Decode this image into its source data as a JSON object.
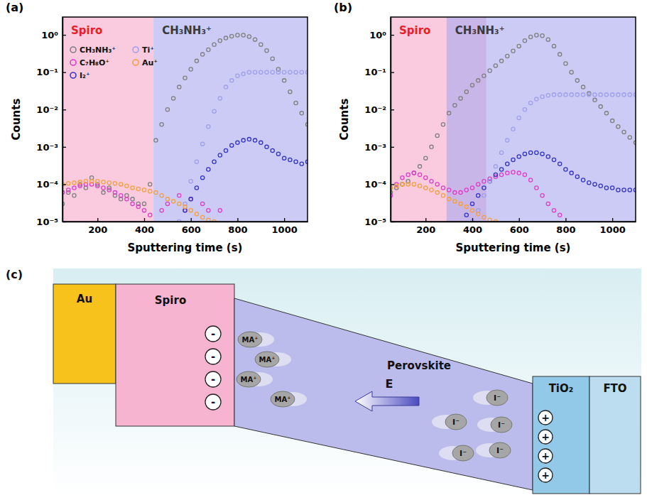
{
  "chart_data": [
    {
      "type": "scatter",
      "title": "(a)",
      "x_label": "Sputtering time (s)",
      "y_label": "Counts",
      "x": [
        50,
        75,
        100,
        125,
        150,
        175,
        200,
        225,
        250,
        275,
        300,
        325,
        350,
        375,
        400,
        425,
        450,
        475,
        500,
        525,
        550,
        575,
        600,
        625,
        650,
        675,
        700,
        725,
        750,
        775,
        800,
        825,
        850,
        875,
        900,
        925,
        950,
        975,
        1000,
        1025,
        1050,
        1075,
        1100
      ],
      "series": [
        {
          "name": "CH₃NH₃⁺",
          "color": "#808080",
          "marker": "circle",
          "values": [
            3e-05,
            6e-05,
            5e-05,
            0.0001,
            8e-05,
            0.00015,
            0.0001,
            6e-05,
            8e-05,
            5e-05,
            4e-05,
            5e-05,
            4e-05,
            3e-05,
            3e-05,
            0.0001,
            0.0015,
            0.004,
            0.01,
            0.02,
            0.04,
            0.07,
            0.12,
            0.2,
            0.3,
            0.4,
            0.55,
            0.7,
            0.82,
            0.92,
            0.98,
            0.98,
            0.9,
            0.75,
            0.55,
            0.38,
            0.23,
            0.12,
            0.06,
            0.03,
            0.015,
            0.008,
            0.004
          ]
        },
        {
          "name": "C₇H₈O⁺",
          "color": "#e040c8",
          "marker": "circle",
          "values": [
            6e-05,
            7e-05,
            8e-05,
            9e-05,
            0.0001,
            0.0001,
            9e-05,
            8e-05,
            7e-05,
            6e-05,
            5e-05,
            4e-05,
            3e-05,
            2.5e-05,
            2e-05,
            1.5e-05,
            null,
            2e-05,
            3e-05,
            null,
            5e-05,
            2e-05,
            4e-05,
            null,
            3e-05,
            2e-05,
            null,
            2e-05,
            null,
            null,
            null,
            null,
            null,
            null,
            null,
            null,
            null,
            null,
            null,
            null,
            null,
            null,
            null
          ]
        },
        {
          "name": "I₂⁺",
          "color": "#3535c8",
          "marker": "circle",
          "values": [
            null,
            null,
            null,
            null,
            null,
            null,
            null,
            null,
            null,
            null,
            null,
            null,
            null,
            null,
            null,
            null,
            null,
            null,
            null,
            null,
            null,
            2e-05,
            4e-05,
            8e-05,
            0.00015,
            0.00025,
            0.0004,
            0.0006,
            0.0008,
            0.0011,
            0.0013,
            0.0015,
            0.0016,
            0.0015,
            0.0013,
            0.001,
            0.0008,
            0.00065,
            0.0005,
            0.00045,
            0.0004,
            0.00035,
            0.0004
          ]
        },
        {
          "name": "Ti⁺",
          "color": "#a0a0ee",
          "marker": "circle",
          "values": [
            null,
            null,
            null,
            null,
            null,
            null,
            null,
            null,
            null,
            null,
            null,
            null,
            null,
            null,
            null,
            null,
            null,
            null,
            null,
            null,
            1e-05,
            3e-05,
            0.00012,
            0.0004,
            0.0012,
            0.0035,
            0.009,
            0.02,
            0.04,
            0.06,
            0.08,
            0.09,
            0.1,
            0.1,
            0.1,
            0.1,
            0.1,
            0.1,
            0.1,
            0.1,
            0.1,
            0.1,
            0.1
          ]
        },
        {
          "name": "Au⁺",
          "color": "#f5a040",
          "marker": "circle",
          "values": [
            0.0001,
            0.000105,
            0.00011,
            0.000115,
            0.00012,
            0.00012,
            0.00012,
            0.000115,
            0.00011,
            0.000105,
            0.0001,
            9e-05,
            8e-05,
            7.5e-05,
            7e-05,
            6.5e-05,
            6e-05,
            5e-05,
            4e-05,
            3.5e-05,
            3e-05,
            2.5e-05,
            2e-05,
            1.6e-05,
            1.3e-05,
            1.1e-05,
            1e-05,
            null,
            null,
            null,
            null,
            null,
            null,
            null,
            null,
            null,
            null,
            null,
            null,
            null,
            null,
            null,
            null
          ]
        }
      ],
      "regions": [
        {
          "label": "Spiro",
          "x0": 50,
          "x1": 440,
          "color": "#f7a8c8"
        },
        {
          "label": "CH₃NH₃⁺",
          "x0": 440,
          "x1": 1100,
          "color": "#a8a8ee"
        }
      ],
      "xlim": [
        50,
        1100
      ],
      "xticks": [
        200,
        400,
        600,
        800,
        1000
      ],
      "ylim": [
        1e-05,
        3
      ],
      "yticks": [
        {
          "value": 1e-05,
          "label": "10⁻⁵"
        },
        {
          "value": 0.0001,
          "label": "10⁻⁴"
        },
        {
          "value": 0.001,
          "label": "10⁻³"
        },
        {
          "value": 0.01,
          "label": "10⁻²"
        },
        {
          "value": 0.1,
          "label": "10⁻¹"
        },
        {
          "value": 1,
          "label": "10⁰"
        }
      ],
      "log": "y",
      "legend": "upper left"
    },
    {
      "type": "scatter",
      "title": "(b)",
      "x_label": "Sputtering time (s)",
      "y_label": "Counts",
      "x": [
        50,
        75,
        100,
        125,
        150,
        175,
        200,
        225,
        250,
        275,
        300,
        325,
        350,
        375,
        400,
        425,
        450,
        475,
        500,
        525,
        550,
        575,
        600,
        625,
        650,
        675,
        700,
        725,
        750,
        775,
        800,
        825,
        850,
        875,
        900,
        925,
        950,
        975,
        1000,
        1025,
        1050,
        1075,
        1100
      ],
      "series": [
        {
          "color": "#808080",
          "marker": "circle",
          "values": [
            6e-05,
            8e-05,
            0.0001,
            0.00012,
            0.0002,
            0.0003,
            0.0005,
            0.001,
            0.002,
            0.004,
            0.008,
            0.013,
            0.02,
            0.03,
            0.045,
            0.06,
            0.08,
            0.11,
            0.15,
            0.2,
            0.27,
            0.37,
            0.5,
            0.7,
            0.88,
            0.98,
            0.95,
            0.75,
            0.5,
            0.3,
            0.17,
            0.1,
            0.06,
            0.04,
            0.027,
            0.018,
            0.012,
            0.008,
            0.005,
            0.0035,
            0.0025,
            0.0018,
            0.0013
          ]
        },
        {
          "color": "#e040c8",
          "marker": "circle",
          "values": [
            5e-05,
            0.0001,
            0.00015,
            0.00018,
            0.0002,
            0.00018,
            0.00015,
            0.00012,
            0.0001,
            8e-05,
            7e-05,
            6e-05,
            6e-05,
            7e-05,
            8e-05,
            0.0001,
            0.00012,
            0.00014,
            0.00016,
            0.00018,
            0.0002,
            0.00021,
            0.0002,
            0.00018,
            0.00013,
            8e-05,
            5e-05,
            3e-05,
            2e-05,
            1.5e-05,
            null,
            null,
            null,
            null,
            null,
            null,
            null,
            null,
            null,
            null,
            null,
            null,
            null
          ]
        },
        {
          "color": "#3535c8",
          "marker": "circle",
          "values": [
            null,
            null,
            null,
            null,
            null,
            null,
            null,
            null,
            null,
            null,
            null,
            null,
            null,
            1.5e-05,
            3e-05,
            5e-05,
            8e-05,
            0.00012,
            0.00018,
            0.00025,
            0.00035,
            0.00045,
            0.00055,
            0.00065,
            0.0007,
            0.0007,
            0.00065,
            0.00055,
            0.00045,
            0.00035,
            0.00025,
            0.0002,
            0.00016,
            0.00013,
            0.00011,
            0.0001,
            9e-05,
            8e-05,
            8e-05,
            7e-05,
            7e-05,
            7e-05,
            7e-05
          ]
        },
        {
          "color": "#a0a0ee",
          "marker": "circle",
          "values": [
            null,
            null,
            null,
            null,
            null,
            null,
            null,
            null,
            null,
            null,
            null,
            null,
            null,
            null,
            1e-05,
            2e-05,
            5e-05,
            0.00012,
            0.0003,
            0.0007,
            0.0015,
            0.003,
            0.006,
            0.01,
            0.015,
            0.019,
            0.022,
            0.024,
            0.025,
            0.025,
            0.025,
            0.025,
            0.025,
            0.025,
            0.025,
            0.025,
            0.025,
            0.025,
            0.025,
            0.025,
            0.025,
            0.025,
            0.025
          ]
        },
        {
          "color": "#f5a040",
          "marker": "circle",
          "values": [
            8e-05,
            9e-05,
            0.0001,
            0.0001,
            0.0001,
            9e-05,
            8e-05,
            7e-05,
            6e-05,
            5e-05,
            4e-05,
            3.5e-05,
            3e-05,
            2.5e-05,
            2e-05,
            1.6e-05,
            1.3e-05,
            1.1e-05,
            1e-05,
            null,
            null,
            null,
            null,
            null,
            null,
            null,
            null,
            null,
            null,
            null,
            null,
            null,
            null,
            null,
            null,
            null,
            null,
            null,
            null,
            null,
            null,
            null,
            null
          ]
        }
      ],
      "regions": [
        {
          "label": "Spiro",
          "x0": 50,
          "x1": 460,
          "color": "#f7a8c8"
        },
        {
          "label": "CH₃NH₃⁺",
          "x0": 290,
          "x1": 1100,
          "color": "#a8a8ee"
        }
      ],
      "xlim": [
        50,
        1100
      ],
      "xticks": [
        200,
        400,
        600,
        800,
        1000
      ],
      "ylim": [
        1e-05,
        3
      ],
      "yticks": [
        {
          "value": 1e-05,
          "label": "10⁻⁵"
        },
        {
          "value": 0.0001,
          "label": "10⁻⁴"
        },
        {
          "value": 0.001,
          "label": "10⁻³"
        },
        {
          "value": 0.01,
          "label": "10⁻²"
        },
        {
          "value": 0.1,
          "label": "10⁻¹"
        },
        {
          "value": 1,
          "label": "10⁰"
        }
      ],
      "log": "y"
    }
  ],
  "diagram": {
    "title": "(c)",
    "layers": {
      "au": "Au",
      "spiro": "Spiro",
      "perovskite": "Perovskite",
      "tio2": "TiO₂",
      "fto": "FTO"
    },
    "field": "E",
    "spiro_charges": [
      "-",
      "-",
      "-",
      "-"
    ],
    "tio2_charges": [
      "+",
      "+",
      "+",
      "+"
    ],
    "cations": [
      "MA⁺",
      "MA⁺",
      "MA⁺",
      "MA⁺"
    ],
    "anions": [
      "I⁻",
      "I⁻",
      "I⁻",
      "I⁻",
      "I⁻"
    ]
  }
}
